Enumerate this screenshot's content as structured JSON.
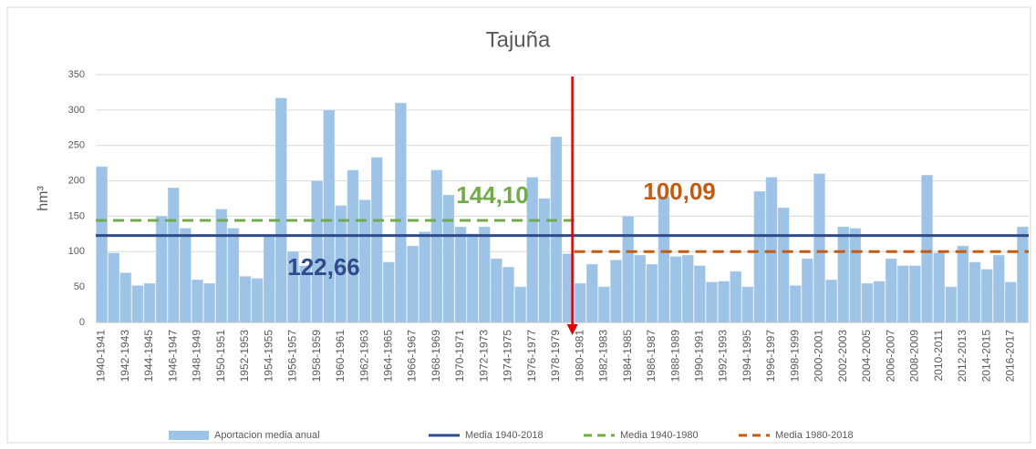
{
  "chart_data": {
    "type": "bar",
    "title": "Tajuña",
    "ylabel": "hm³",
    "categories": [
      "1940-1941",
      null,
      "1942-1943",
      null,
      "1944-1945",
      null,
      "1946-1947",
      null,
      "1948-1949",
      null,
      "1950-1951",
      null,
      "1952-1953",
      null,
      "1954-1955",
      null,
      "1956-1957",
      null,
      "1958-1959",
      null,
      "1960-1961",
      null,
      "1962-1963",
      null,
      "1964-1965",
      null,
      "1966-1967",
      null,
      "1968-1969",
      null,
      "1970-1971",
      null,
      "1972-1973",
      null,
      "1974-1975",
      null,
      "1976-1977",
      null,
      "1978-1979",
      null,
      "1980-1981",
      null,
      "1982-1983",
      null,
      "1984-1985",
      null,
      "1986-1987",
      null,
      "1988-1989",
      null,
      "1990-1991",
      null,
      "1992-1993",
      null,
      "1994-1995",
      null,
      "1996-1997",
      null,
      "1998-1999",
      null,
      "2000-2001",
      null,
      "2002-2003",
      null,
      "2004-2005",
      null,
      "2006-2007",
      null,
      "2008-2009",
      null,
      "2010-2011",
      null,
      "2012-2013",
      null,
      "2014-2015",
      null,
      "2016-2017",
      null
    ],
    "series": [
      {
        "name": "Aportacion media anual",
        "color": "#9dc3e6",
        "values": [
          220,
          98,
          70,
          52,
          55,
          150,
          190,
          133,
          60,
          55,
          160,
          133,
          65,
          62,
          122,
          317,
          100,
          80,
          200,
          300,
          165,
          215,
          173,
          233,
          85,
          310,
          108,
          128,
          215,
          180,
          135,
          125,
          135,
          90,
          78,
          50,
          205,
          175,
          262,
          97,
          55,
          82,
          50,
          88,
          150,
          95,
          82,
          178,
          93,
          95,
          80,
          57,
          58,
          72,
          50,
          185,
          205,
          162,
          52,
          90,
          210,
          60,
          135,
          133,
          55,
          58,
          90,
          80,
          80,
          208,
          98,
          50,
          108,
          85,
          75,
          95,
          57,
          135
        ]
      }
    ],
    "mean_lines": [
      {
        "name": "Media 1940-2018",
        "color": "#2f4b8c",
        "dashed": false,
        "value": 122.66,
        "value_label": "122,66"
      },
      {
        "name": "Media 1940-1980",
        "color": "#70ad47",
        "dashed": true,
        "value": 144.1,
        "value_label": "144,10"
      },
      {
        "name": "Media 1980-2018",
        "color": "#c55a11",
        "dashed": true,
        "value": 100.09,
        "value_label": "100,09"
      }
    ],
    "ylim": [
      0,
      350
    ],
    "yticks": [
      0,
      50,
      100,
      150,
      200,
      250,
      300,
      350
    ],
    "grid": true
  }
}
